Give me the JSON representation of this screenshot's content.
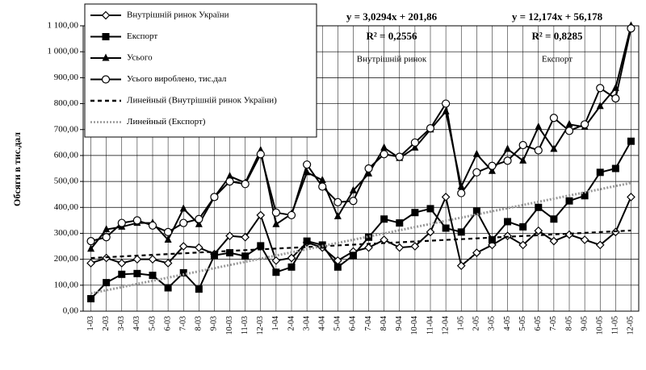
{
  "chart_data": {
    "type": "line",
    "ylabel": "Обсяги в тис.дал",
    "categories": [
      "1-03",
      "2-03",
      "3-03",
      "4-03",
      "5-03",
      "6-03",
      "7-03",
      "8-03",
      "9-03",
      "10-03",
      "11-03",
      "12-03",
      "1-04",
      "2-04",
      "3-04",
      "4-04",
      "5-04",
      "6-04",
      "7-04",
      "8-04",
      "9-04",
      "10-04",
      "11-04",
      "12-04",
      "1-05",
      "2-05",
      "3-05",
      "4-05",
      "5-05",
      "6-05",
      "7-05",
      "8-05",
      "9-05",
      "10-05",
      "11-05",
      "12-05"
    ],
    "ylim": [
      0,
      1100
    ],
    "yticks": [
      {
        "value": 0,
        "label": "0,00"
      },
      {
        "value": 100,
        "label": "100,00"
      },
      {
        "value": 200,
        "label": "200,00"
      },
      {
        "value": 300,
        "label": "300,00"
      },
      {
        "value": 400,
        "label": "400,00"
      },
      {
        "value": 500,
        "label": "500,00"
      },
      {
        "value": 600,
        "label": "600,00"
      },
      {
        "value": 700,
        "label": "700,00"
      },
      {
        "value": 800,
        "label": "800,00"
      },
      {
        "value": 900,
        "label": "900,00"
      },
      {
        "value": 1000,
        "label": "1 000,00"
      },
      {
        "value": 1100,
        "label": "1 100,00"
      }
    ],
    "grid": true,
    "legend": "upper left",
    "series": [
      {
        "name": "Внутрішній ринок України",
        "color": "#000000",
        "marker": "diamond",
        "values": [
          185,
          205,
          185,
          200,
          200,
          185,
          250,
          245,
          220,
          290,
          285,
          370,
          195,
          205,
          265,
          245,
          195,
          230,
          245,
          275,
          245,
          250,
          305,
          440,
          175,
          225,
          255,
          290,
          255,
          310,
          270,
          295,
          275,
          255,
          305,
          440
        ]
      },
      {
        "name": "Експорт",
        "color": "#000000",
        "marker": "square",
        "values": [
          48,
          110,
          142,
          145,
          138,
          90,
          148,
          85,
          215,
          225,
          212,
          252,
          150,
          170,
          270,
          255,
          170,
          215,
          285,
          355,
          340,
          380,
          395,
          320,
          305,
          385,
          275,
          345,
          325,
          400,
          355,
          425,
          445,
          535,
          550,
          655
        ]
      },
      {
        "name": "Усього",
        "color": "#000000",
        "marker": "triangle",
        "values": [
          240,
          315,
          325,
          340,
          340,
          275,
          395,
          335,
          440,
          520,
          495,
          620,
          335,
          375,
          535,
          505,
          365,
          465,
          530,
          630,
          590,
          630,
          700,
          770,
          480,
          605,
          540,
          625,
          580,
          710,
          625,
          720,
          710,
          790,
          860,
          1100
        ]
      },
      {
        "name": "Усього вироблено, тис.дал",
        "color": "#000000",
        "marker": "circle",
        "values": [
          270,
          285,
          340,
          350,
          330,
          305,
          340,
          355,
          440,
          500,
          490,
          605,
          380,
          370,
          565,
          480,
          420,
          425,
          550,
          605,
          595,
          650,
          705,
          800,
          455,
          535,
          560,
          580,
          640,
          620,
          745,
          695,
          720,
          860,
          820,
          1090
        ]
      },
      {
        "name": "Линейный (Внутрішній ринок України)",
        "color": "#000000",
        "marker": "none",
        "dash": "dashed",
        "values": [
          204.9,
          207.9,
          210.9,
          214.0,
          217.0,
          220.0,
          223.1,
          226.1,
          229.1,
          232.2,
          235.2,
          238.2,
          241.2,
          244.3,
          247.3,
          250.3,
          253.4,
          256.4,
          259.4,
          262.4,
          265.5,
          268.5,
          271.5,
          274.6,
          277.6,
          280.6,
          283.7,
          286.7,
          289.7,
          292.7,
          295.8,
          298.8,
          301.8,
          304.9,
          307.9,
          310.9
        ]
      },
      {
        "name": "Линейный (Експорт)",
        "color": "#999999",
        "marker": "none",
        "dash": "dotted",
        "values": [
          68.4,
          80.5,
          92.7,
          104.9,
          117.0,
          129.2,
          141.4,
          153.6,
          165.7,
          177.9,
          190.1,
          202.3,
          214.4,
          226.6,
          238.8,
          250.9,
          263.1,
          275.3,
          287.5,
          299.7,
          311.8,
          324.0,
          336.2,
          348.4,
          360.5,
          372.7,
          384.9,
          397.1,
          409.2,
          421.4,
          433.6,
          445.7,
          457.9,
          470.1,
          482.3,
          494.4
        ]
      }
    ],
    "annotations": [
      "y = 3,0294x + 201,86",
      "R² = 0,2556",
      "Внутрішній ринок",
      "y = 12,174x + 56,178",
      "R² = 0,8285",
      "Експорт"
    ]
  }
}
